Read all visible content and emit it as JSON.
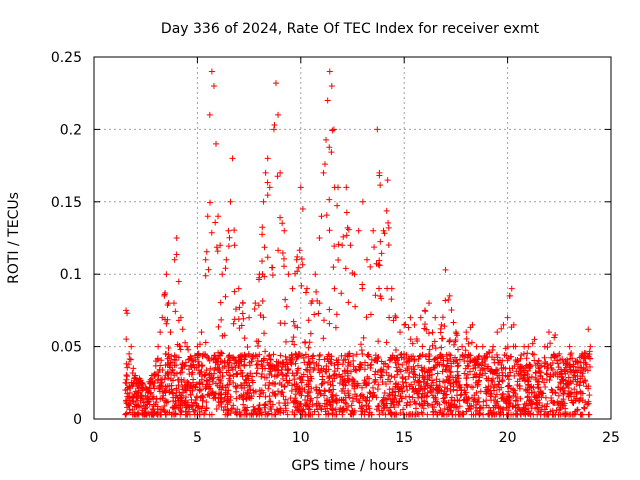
{
  "chart_data": {
    "type": "scatter",
    "title": "Day 336 of 2024, Rate Of TEC Index for receiver exmt",
    "xlabel": "GPS time / hours",
    "ylabel": "ROTI / TECUs",
    "xlim": [
      0,
      25
    ],
    "ylim": [
      0,
      0.25
    ],
    "xticks": [
      0,
      5,
      10,
      15,
      20,
      25
    ],
    "xtick_labels": [
      "0",
      "5",
      "10",
      "15",
      "20",
      "25"
    ],
    "yticks": [
      0,
      0.05,
      0.1,
      0.15,
      0.2,
      0.25
    ],
    "ytick_labels": [
      "0",
      "0.05",
      "0.1",
      "0.15",
      "0.2",
      "0.25"
    ],
    "grid": true,
    "marker": "+",
    "marker_color": "#ff0000",
    "x_range_hours": [
      1.5,
      24.0
    ],
    "series": [
      {
        "name": "ROTI",
        "points": [
          [
            1.55,
            0.075
          ],
          [
            1.6,
            0.073
          ],
          [
            1.7,
            0.045
          ],
          [
            1.8,
            0.05
          ],
          [
            1.9,
            0.035
          ],
          [
            2.0,
            0.03
          ],
          [
            2.2,
            0.028
          ],
          [
            2.5,
            0.022
          ],
          [
            2.8,
            0.03
          ],
          [
            3.0,
            0.04
          ],
          [
            3.1,
            0.05
          ],
          [
            3.2,
            0.06
          ],
          [
            3.3,
            0.07
          ],
          [
            3.4,
            0.085
          ],
          [
            3.5,
            0.1
          ],
          [
            3.6,
            0.08
          ],
          [
            3.7,
            0.06
          ],
          [
            3.9,
            0.11
          ],
          [
            4.0,
            0.125
          ],
          [
            4.1,
            0.095
          ],
          [
            4.2,
            0.07
          ],
          [
            4.5,
            0.05
          ],
          [
            4.8,
            0.04
          ],
          [
            5.0,
            0.05
          ],
          [
            5.2,
            0.06
          ],
          [
            5.4,
            0.11
          ],
          [
            5.5,
            0.14
          ],
          [
            5.6,
            0.21
          ],
          [
            5.7,
            0.24
          ],
          [
            5.8,
            0.23
          ],
          [
            5.9,
            0.19
          ],
          [
            6.0,
            0.14
          ],
          [
            6.1,
            0.12
          ],
          [
            6.2,
            0.1
          ],
          [
            6.4,
            0.11
          ],
          [
            6.5,
            0.13
          ],
          [
            6.6,
            0.15
          ],
          [
            6.7,
            0.18
          ],
          [
            6.8,
            0.12
          ],
          [
            7.0,
            0.09
          ],
          [
            7.2,
            0.08
          ],
          [
            7.5,
            0.07
          ],
          [
            7.8,
            0.08
          ],
          [
            8.0,
            0.1
          ],
          [
            8.2,
            0.15
          ],
          [
            8.3,
            0.17
          ],
          [
            8.4,
            0.18
          ],
          [
            8.5,
            0.16
          ],
          [
            8.7,
            0.2
          ],
          [
            8.8,
            0.232
          ],
          [
            8.9,
            0.21
          ],
          [
            9.0,
            0.17
          ],
          [
            9.2,
            0.13
          ],
          [
            9.4,
            0.1
          ],
          [
            9.6,
            0.09
          ],
          [
            9.8,
            0.11
          ],
          [
            10.0,
            0.16
          ],
          [
            10.1,
            0.145
          ],
          [
            10.3,
            0.09
          ],
          [
            10.5,
            0.08
          ],
          [
            10.7,
            0.1
          ],
          [
            10.9,
            0.125
          ],
          [
            11.0,
            0.14
          ],
          [
            11.1,
            0.17
          ],
          [
            11.3,
            0.22
          ],
          [
            11.4,
            0.24
          ],
          [
            11.5,
            0.23
          ],
          [
            11.6,
            0.2
          ],
          [
            11.8,
            0.16
          ],
          [
            12.0,
            0.12
          ],
          [
            12.2,
            0.16
          ],
          [
            12.4,
            0.12
          ],
          [
            12.6,
            0.1
          ],
          [
            12.8,
            0.13
          ],
          [
            13.0,
            0.15
          ],
          [
            13.2,
            0.11
          ],
          [
            13.5,
            0.13
          ],
          [
            13.7,
            0.2
          ],
          [
            13.8,
            0.17
          ],
          [
            14.0,
            0.13
          ],
          [
            14.2,
            0.165
          ],
          [
            14.4,
            0.09
          ],
          [
            14.6,
            0.07
          ],
          [
            14.8,
            0.06
          ],
          [
            15.0,
            0.065
          ],
          [
            15.3,
            0.07
          ],
          [
            15.5,
            0.065
          ],
          [
            15.8,
            0.07
          ],
          [
            16.0,
            0.075
          ],
          [
            16.2,
            0.08
          ],
          [
            16.5,
            0.07
          ],
          [
            16.8,
            0.065
          ],
          [
            17.0,
            0.103
          ],
          [
            17.2,
            0.085
          ],
          [
            17.5,
            0.06
          ],
          [
            17.8,
            0.05
          ],
          [
            18.0,
            0.06
          ],
          [
            18.3,
            0.065
          ],
          [
            18.5,
            0.05
          ],
          [
            18.8,
            0.05
          ],
          [
            19.0,
            0.045
          ],
          [
            19.3,
            0.05
          ],
          [
            19.5,
            0.06
          ],
          [
            19.8,
            0.065
          ],
          [
            20.0,
            0.07
          ],
          [
            20.1,
            0.085
          ],
          [
            20.2,
            0.09
          ],
          [
            20.3,
            0.065
          ],
          [
            20.5,
            0.04
          ],
          [
            20.8,
            0.05
          ],
          [
            21.0,
            0.05
          ],
          [
            21.3,
            0.055
          ],
          [
            21.5,
            0.04
          ],
          [
            21.8,
            0.05
          ],
          [
            22.0,
            0.06
          ],
          [
            22.3,
            0.058
          ],
          [
            22.5,
            0.045
          ],
          [
            22.8,
            0.04
          ],
          [
            23.0,
            0.05
          ],
          [
            23.3,
            0.04
          ],
          [
            23.6,
            0.045
          ],
          [
            23.9,
            0.062
          ],
          [
            24.0,
            0.05
          ]
        ]
      }
    ]
  }
}
